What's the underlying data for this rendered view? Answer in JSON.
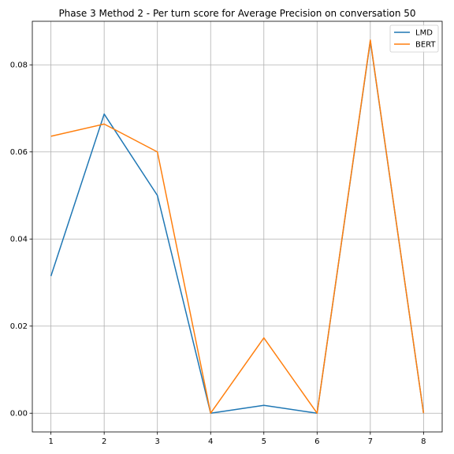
{
  "chart_data": {
    "type": "line",
    "title": "Phase 3 Method 2 - Per turn score for Average Precision on conversation 50",
    "xlabel": "",
    "ylabel": "",
    "x": [
      1,
      2,
      3,
      4,
      5,
      6,
      7,
      8
    ],
    "series": [
      {
        "name": "LMD",
        "color": "#1f77b4",
        "values": [
          0.0315,
          0.0687,
          0.05,
          0.0,
          0.0018,
          0.0,
          0.0855,
          0.0
        ]
      },
      {
        "name": "BERT",
        "color": "#ff7f0e",
        "values": [
          0.0636,
          0.0664,
          0.06,
          0.0,
          0.0173,
          0.0,
          0.0857,
          0.0
        ]
      }
    ],
    "xlim": [
      0.65,
      8.35
    ],
    "ylim": [
      -0.0043,
      0.09
    ],
    "xticks": [
      1,
      2,
      3,
      4,
      5,
      6,
      7,
      8
    ],
    "xtick_labels": [
      "1",
      "2",
      "3",
      "4",
      "5",
      "6",
      "7",
      "8"
    ],
    "yticks": [
      0.0,
      0.02,
      0.04,
      0.06,
      0.08
    ],
    "ytick_labels": [
      "0.00",
      "0.02",
      "0.04",
      "0.06",
      "0.08"
    ],
    "grid": true,
    "legend_position": "top-right"
  }
}
